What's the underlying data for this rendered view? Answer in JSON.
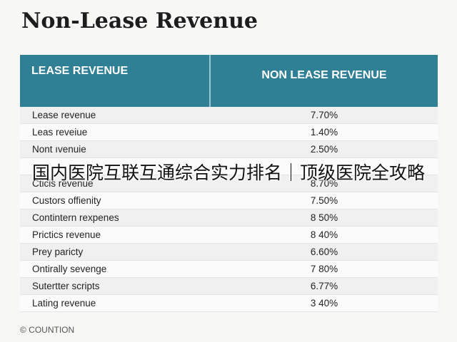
{
  "title": "Non-Lease Revenue",
  "table": {
    "header": [
      "LEASE REVENUE",
      "NON LEASE REVENUE"
    ],
    "rows": [
      [
        "Lease revenue",
        "7.70%"
      ],
      [
        "Leas reveiue",
        "1.40%"
      ],
      [
        "Nont ıvenuie",
        "2.50%"
      ],
      [
        "Cticis revenue",
        "8.70%"
      ],
      [
        "Custors offienity",
        "7.50%"
      ],
      [
        "Contintern rexpenes",
        "8 50%"
      ],
      [
        "Prictics revenue",
        "8 40%"
      ],
      [
        "Prey paricty",
        "6.60%"
      ],
      [
        "Ontirally sevenge",
        "7 80%"
      ],
      [
        "Sutertter scripts",
        "6.77%"
      ],
      [
        "Lating revenue",
        "3 40%"
      ]
    ]
  },
  "footer": "© COUNTION",
  "overlay": "国内医院互联互通综合实力排名｜顶级医院全攻略"
}
